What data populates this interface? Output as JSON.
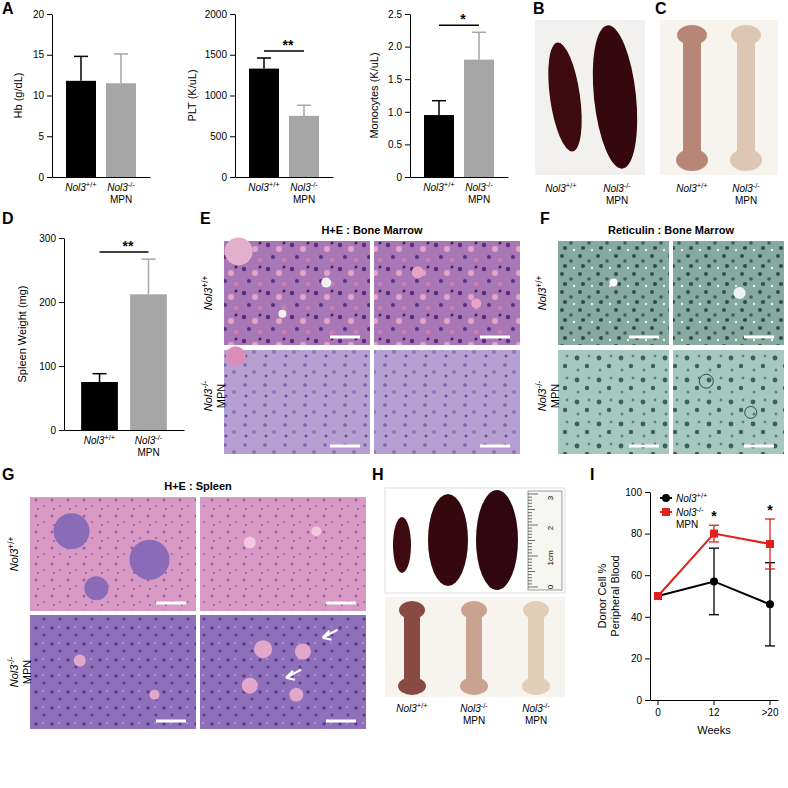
{
  "chart_data": [
    {
      "type": "bar",
      "ylabel": "Hb (g/dL)",
      "categories": [
        "Nol3+/+",
        "Nol3-/- MPN"
      ],
      "values": [
        11.8,
        11.5
      ],
      "errors": [
        3.0,
        3.6
      ],
      "colors": [
        "#000000",
        "#a6a6a6"
      ],
      "ylim": [
        0,
        20
      ],
      "yticks": [
        0,
        5,
        10,
        15,
        20
      ]
    },
    {
      "type": "bar",
      "ylabel": "PLT (K/uL)",
      "categories": [
        "Nol3+/+",
        "Nol3-/- MPN"
      ],
      "values": [
        1330,
        750
      ],
      "errors": [
        130,
        130
      ],
      "colors": [
        "#000000",
        "#a6a6a6"
      ],
      "ylim": [
        0,
        2000
      ],
      "yticks": [
        0,
        500,
        1000,
        1500,
        2000
      ],
      "annotations": [
        {
          "text": "**"
        }
      ]
    },
    {
      "type": "bar",
      "ylabel": "Monocytes (K/uL)",
      "categories": [
        "Nol3+/+",
        "Nol3-/- MPN"
      ],
      "values": [
        0.95,
        1.8
      ],
      "errors": [
        0.22,
        0.42
      ],
      "colors": [
        "#000000",
        "#a6a6a6"
      ],
      "ylim": [
        0,
        2.5
      ],
      "yticks": [
        0,
        0.5,
        {
          "value": 1,
          "label": "1.0"
        },
        1.5,
        {
          "value": 2,
          "label": "2.0"
        },
        2.5
      ],
      "annotations": [
        {
          "text": "*"
        }
      ]
    },
    {
      "type": "bar",
      "ylabel": "Spleen Weight (mg)",
      "categories": [
        "Nol3+/+",
        "Nol3-/- MPN"
      ],
      "values": [
        75,
        212
      ],
      "errors": [
        13,
        55
      ],
      "colors": [
        "#000000",
        "#a6a6a6"
      ],
      "ylim": [
        0,
        300
      ],
      "yticks": [
        0,
        100,
        200,
        300
      ],
      "annotations": [
        {
          "text": "**"
        }
      ]
    },
    {
      "type": "line",
      "xlabel": "Weeks",
      "ylabel": "Donor Cell %\nPeripheral Blood",
      "categories": [
        "0",
        "12",
        ">20"
      ],
      "series": [
        {
          "name": "Nol3+/+",
          "color": "#000000",
          "marker": "circle",
          "values": [
            50,
            57,
            46
          ],
          "errors": [
            null,
            16,
            20
          ]
        },
        {
          "name": "Nol3-/- MPN",
          "color": "#e0221b",
          "marker": "square",
          "values": [
            50,
            80,
            75
          ],
          "errors": [
            null,
            4,
            12
          ]
        }
      ],
      "ylim": [
        0,
        100
      ],
      "yticks": [
        0,
        20,
        40,
        60,
        80,
        100
      ],
      "legend": "top-left",
      "annotations": [
        {
          "text": "*",
          "category": "12"
        },
        {
          "text": "*",
          "category": ">20"
        }
      ]
    }
  ],
  "panel_letters": [
    "A",
    "B",
    "C",
    "D",
    "E",
    "F",
    "G",
    "H",
    "I"
  ],
  "images": {
    "B": {
      "labels": [
        "Nol3+/+",
        "Nol3-/- MPN"
      ]
    },
    "C": {
      "labels": [
        "Nol3+/+",
        "Nol3-/- MPN"
      ]
    },
    "E": {
      "title": "H+E : Bone Marrow",
      "row_labels": [
        "Nol3+/+",
        "Nol3-/- MPN"
      ]
    },
    "F": {
      "title": "Reticulin : Bone Marrow",
      "row_labels": [
        "Nol3+/+",
        "Nol3-/- MPN"
      ]
    },
    "G": {
      "title": "H+E : Spleen",
      "row_labels": [
        "Nol3+/+",
        "Nol3-/- MPN"
      ]
    },
    "H": {
      "labels": [
        "Nol3+/+",
        "Nol3-/- MPN",
        "Nol3-/- MPN"
      ],
      "ruler": [
        "3",
        "2",
        "1cm",
        "0"
      ]
    }
  }
}
